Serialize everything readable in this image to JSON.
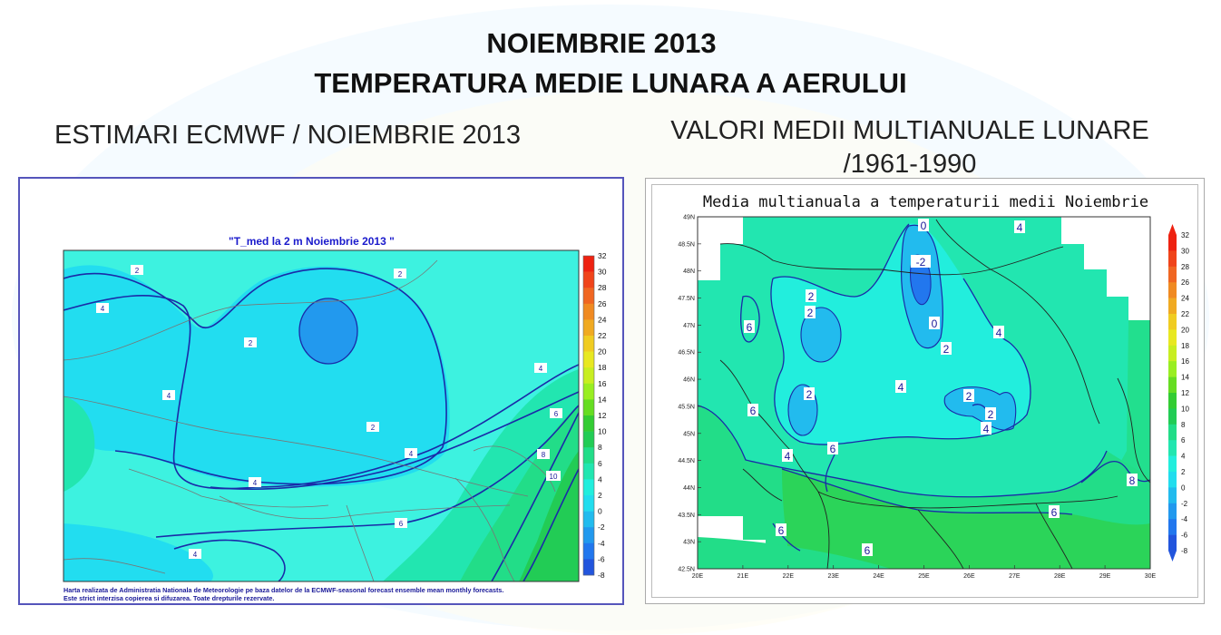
{
  "title": {
    "line1": "NOIEMBRIE 2013",
    "line2": "TEMPERATURA MEDIE LUNARA A AERULUI"
  },
  "left_panel": {
    "heading": "ESTIMARI ECMWF / NOIEMBRIE 2013",
    "map_title": "\"T_med la 2 m Noiembrie 2013 \"",
    "credit_line1": "Harta realizata de Administratia Nationala de Meteorologie pe baza datelor de la ECMWF-seasonal forecast ensemble mean monthly forecasts.",
    "credit_line2": "Este strict interzisa copierea si difuzarea. Toate drepturile rezervate.",
    "contour_labels": [
      "2",
      "2",
      "4",
      "2",
      "4",
      "2",
      "4",
      "4",
      "4",
      "6",
      "6",
      "8",
      "10",
      "6",
      "4"
    ],
    "colorbar": [
      "32",
      "30",
      "28",
      "26",
      "24",
      "22",
      "20",
      "18",
      "16",
      "14",
      "12",
      "10",
      "8",
      "6",
      "4",
      "2",
      "0",
      "-2",
      "-4",
      "-6",
      "-8"
    ],
    "colorbar_colors": [
      "#ee2211",
      "#f0441a",
      "#f06622",
      "#f08a22",
      "#f0aa22",
      "#f0cc22",
      "#e8e822",
      "#c8ee22",
      "#99ee22",
      "#66dd22",
      "#33cc33",
      "#22cc55",
      "#22dd88",
      "#22e6b0",
      "#22eedd",
      "#22ddee",
      "#22bbee",
      "#2299ee",
      "#2277ee",
      "#2255dd"
    ]
  },
  "right_panel": {
    "heading_line1": "VALORI MEDII MULTIANUALE LUNARE",
    "heading_line2": "/1961-1990",
    "map_title": "Media multianuala a temperaturii medii Noiembrie",
    "lat_labels": [
      "49N",
      "48.5N",
      "48N",
      "47.5N",
      "47N",
      "46.5N",
      "46N",
      "45.5N",
      "45N",
      "44.5N",
      "44N",
      "43.5N",
      "43N",
      "42.5N"
    ],
    "lon_labels": [
      "20E",
      "21E",
      "22E",
      "23E",
      "24E",
      "25E",
      "26E",
      "27E",
      "28E",
      "29E",
      "30E"
    ],
    "contour_labels": [
      "0",
      "-2",
      "0",
      "2",
      "4",
      "4",
      "2",
      "2",
      "4",
      "2",
      "2",
      "4",
      "2",
      "6",
      "6",
      "4",
      "6",
      "6",
      "6",
      "8",
      "6",
      "4",
      "2",
      "2"
    ],
    "colorbar": [
      "32",
      "30",
      "28",
      "26",
      "24",
      "22",
      "20",
      "18",
      "16",
      "14",
      "12",
      "10",
      "8",
      "6",
      "4",
      "2",
      "0",
      "-2",
      "-4",
      "-6",
      "-8"
    ],
    "colorbar_colors": [
      "#ee2211",
      "#f0441a",
      "#f06622",
      "#f08a22",
      "#f0aa22",
      "#f0cc22",
      "#e8e822",
      "#c8ee22",
      "#99ee22",
      "#66dd22",
      "#33cc33",
      "#22cc55",
      "#22dd88",
      "#22e6b0",
      "#22eedd",
      "#22ddee",
      "#22bbee",
      "#2299ee",
      "#2277ee",
      "#2255dd"
    ]
  }
}
